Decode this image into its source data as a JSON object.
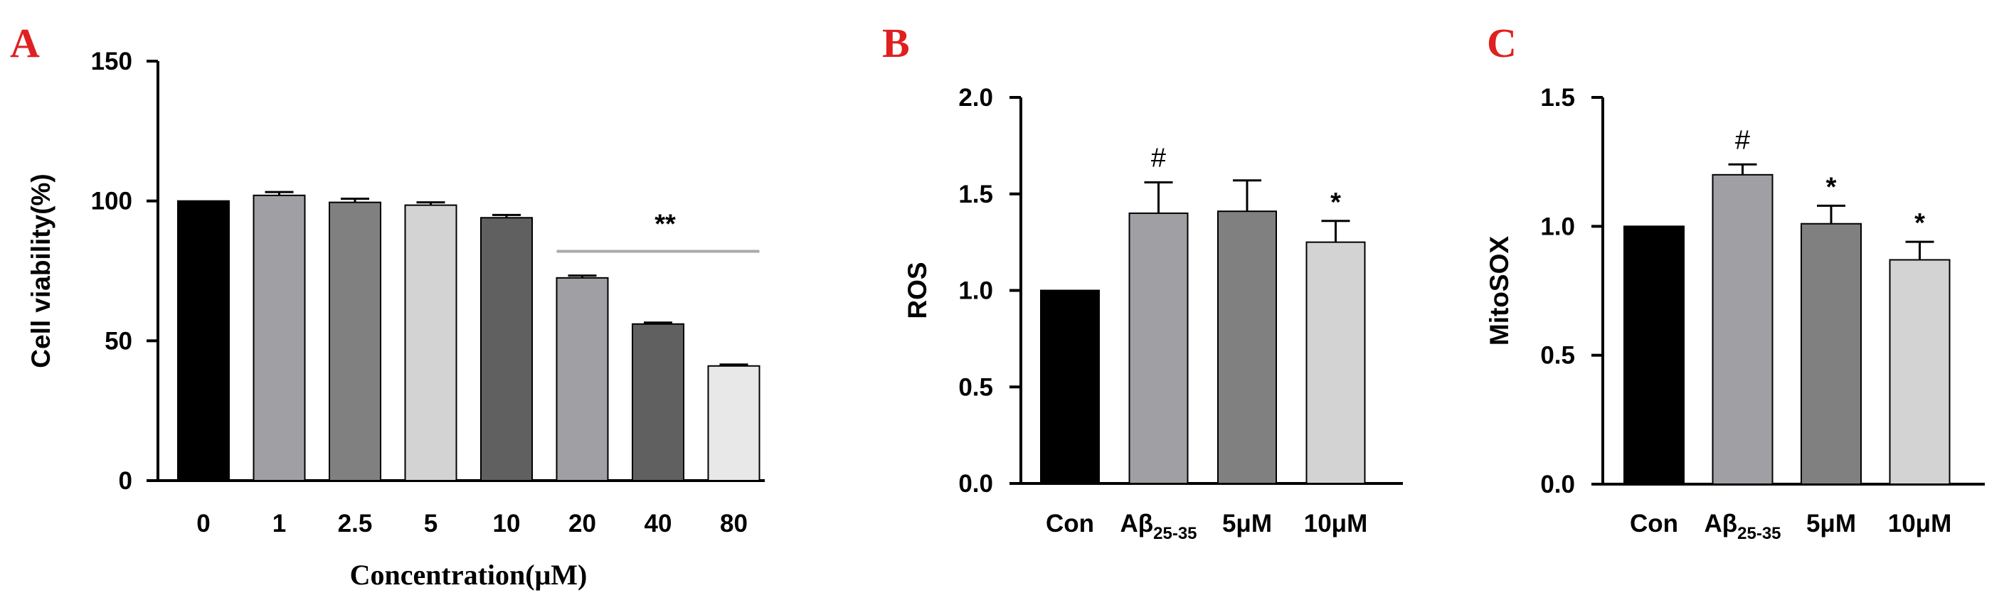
{
  "panels": [
    {
      "letter": "A"
    },
    {
      "letter": "B"
    },
    {
      "letter": "C"
    }
  ],
  "chart_data": [
    {
      "type": "bar",
      "panel": "A",
      "categories": [
        "0",
        "1",
        "2.5",
        "5",
        "10",
        "20",
        "40",
        "80"
      ],
      "values": [
        100,
        102,
        99.5,
        98.5,
        94,
        72.5,
        56,
        41
      ],
      "errors": [
        0,
        1.2,
        1.3,
        1,
        1,
        0.8,
        0.5,
        0.5
      ],
      "colors": [
        "#000000",
        "#a0a0a4",
        "#808080",
        "#d3d3d3",
        "#606060",
        "#a0a0a4",
        "#606060",
        "#e8e8e8"
      ],
      "ylabel": "Cell viability(%)",
      "xlabel": "Concentration(μM)",
      "ylim": [
        0,
        150
      ],
      "yticks": [
        "0",
        "50",
        "100",
        "150"
      ],
      "annotations": [
        {
          "text": "**",
          "from": 5,
          "to": 7,
          "value": 82
        }
      ]
    },
    {
      "type": "bar",
      "panel": "B",
      "categories": [
        {
          "main": "Con",
          "sub": ""
        },
        {
          "main": "Aβ",
          "sub": "25-35"
        },
        {
          "main": "5μM",
          "sub": ""
        },
        {
          "main": "10μM",
          "sub": ""
        }
      ],
      "values": [
        1.0,
        1.4,
        1.41,
        1.25
      ],
      "errors": [
        0,
        0.16,
        0.16,
        0.11
      ],
      "colors": [
        "#000000",
        "#a0a0a4",
        "#808080",
        "#d3d3d3"
      ],
      "ylabel": "ROS",
      "xlabel": "",
      "ylim": [
        0,
        2.0
      ],
      "yticks": [
        "0.0",
        "0.5",
        "1.0",
        "1.5",
        "2.0"
      ],
      "annotations": [
        {
          "text": "#",
          "bar": 1
        },
        {
          "text": "*",
          "bar": 3
        }
      ]
    },
    {
      "type": "bar",
      "panel": "C",
      "categories": [
        {
          "main": "Con",
          "sub": ""
        },
        {
          "main": "Aβ",
          "sub": "25-35"
        },
        {
          "main": "5μM",
          "sub": ""
        },
        {
          "main": "10μM",
          "sub": ""
        }
      ],
      "values": [
        1.0,
        1.2,
        1.01,
        0.87
      ],
      "errors": [
        0,
        0.04,
        0.07,
        0.07
      ],
      "colors": [
        "#000000",
        "#a0a0a4",
        "#808080",
        "#d3d3d3"
      ],
      "ylabel": "MitoSOX",
      "xlabel": "",
      "ylim": [
        0,
        1.5
      ],
      "yticks": [
        "0.0",
        "0.5",
        "1.0",
        "1.5"
      ],
      "annotations": [
        {
          "text": "#",
          "bar": 1
        },
        {
          "text": "*",
          "bar": 2
        },
        {
          "text": "*",
          "bar": 3
        }
      ]
    }
  ]
}
